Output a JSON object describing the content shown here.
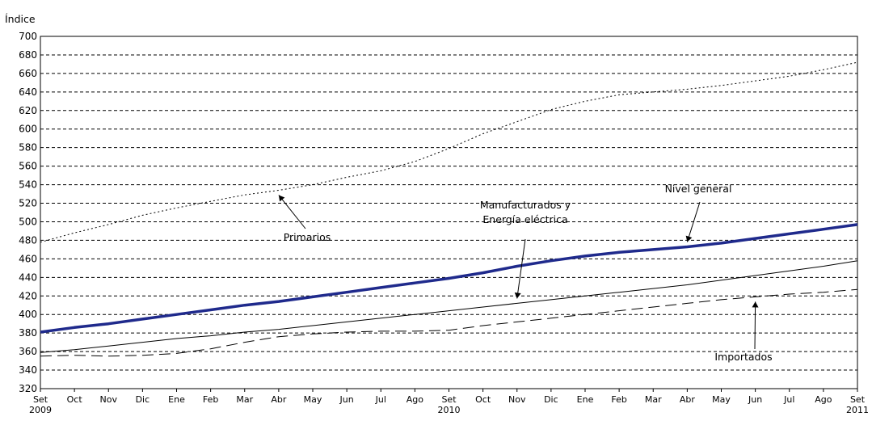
{
  "chart_data": {
    "type": "line",
    "ylabel": "Índice",
    "ylim": [
      320,
      700
    ],
    "yticks": [
      320,
      340,
      360,
      380,
      400,
      420,
      440,
      460,
      480,
      500,
      520,
      540,
      560,
      580,
      600,
      620,
      640,
      660,
      680,
      700
    ],
    "grid": true,
    "x": [
      "Set",
      "Oct",
      "Nov",
      "Dic",
      "Ene",
      "Feb",
      "Mar",
      "Abr",
      "May",
      "Jun",
      "Jul",
      "Ago",
      "Set",
      "Oct",
      "Nov",
      "Dic",
      "Ene",
      "Feb",
      "Mar",
      "Abr",
      "May",
      "Jun",
      "Jul",
      "Ago",
      "Set"
    ],
    "years": [
      {
        "label": "2009",
        "index": 0
      },
      {
        "label": "2010",
        "index": 12
      },
      {
        "label": "2011",
        "index": 24
      }
    ],
    "series": [
      {
        "name": "Primarios",
        "color": "#000000",
        "style": "dotted",
        "width": 1,
        "values": [
          478,
          488,
          497,
          507,
          515,
          522,
          529,
          534,
          540,
          548,
          555,
          565,
          579,
          595,
          608,
          621,
          630,
          637,
          640,
          643,
          647,
          652,
          657,
          664,
          672
        ]
      },
      {
        "name": "Nivel general",
        "color": "#1f2a8c",
        "style": "solid",
        "width": 3.5,
        "values": [
          381,
          386,
          390,
          395,
          400,
          405,
          410,
          414,
          419,
          424,
          429,
          434,
          439,
          445,
          452,
          458,
          463,
          467,
          470,
          473,
          477,
          482,
          487,
          492,
          497
        ]
      },
      {
        "name": "Manufacturados y Energía eléctrica",
        "color": "#000000",
        "style": "solid",
        "width": 1,
        "values": [
          359,
          362,
          366,
          370,
          374,
          377,
          381,
          384,
          388,
          392,
          396,
          400,
          404,
          408,
          412,
          416,
          420,
          424,
          428,
          432,
          437,
          442,
          447,
          452,
          458
        ]
      },
      {
        "name": "Importados",
        "color": "#000000",
        "style": "dashed",
        "width": 1,
        "values": [
          355,
          356,
          355,
          356,
          358,
          363,
          370,
          376,
          379,
          381,
          382,
          382,
          383,
          388,
          392,
          396,
          400,
          404,
          408,
          412,
          416,
          419,
          422,
          424,
          427
        ]
      }
    ],
    "annotations": [
      {
        "lines": [
          "Primarios"
        ],
        "series": "Primarios"
      },
      {
        "lines": [
          "Manufacturados y",
          "Energía eléctrica"
        ],
        "series": "Manufacturados y Energía eléctrica"
      },
      {
        "lines": [
          "Nivel general"
        ],
        "series": "Nivel general"
      },
      {
        "lines": [
          "Importados"
        ],
        "series": "Importados"
      }
    ]
  }
}
